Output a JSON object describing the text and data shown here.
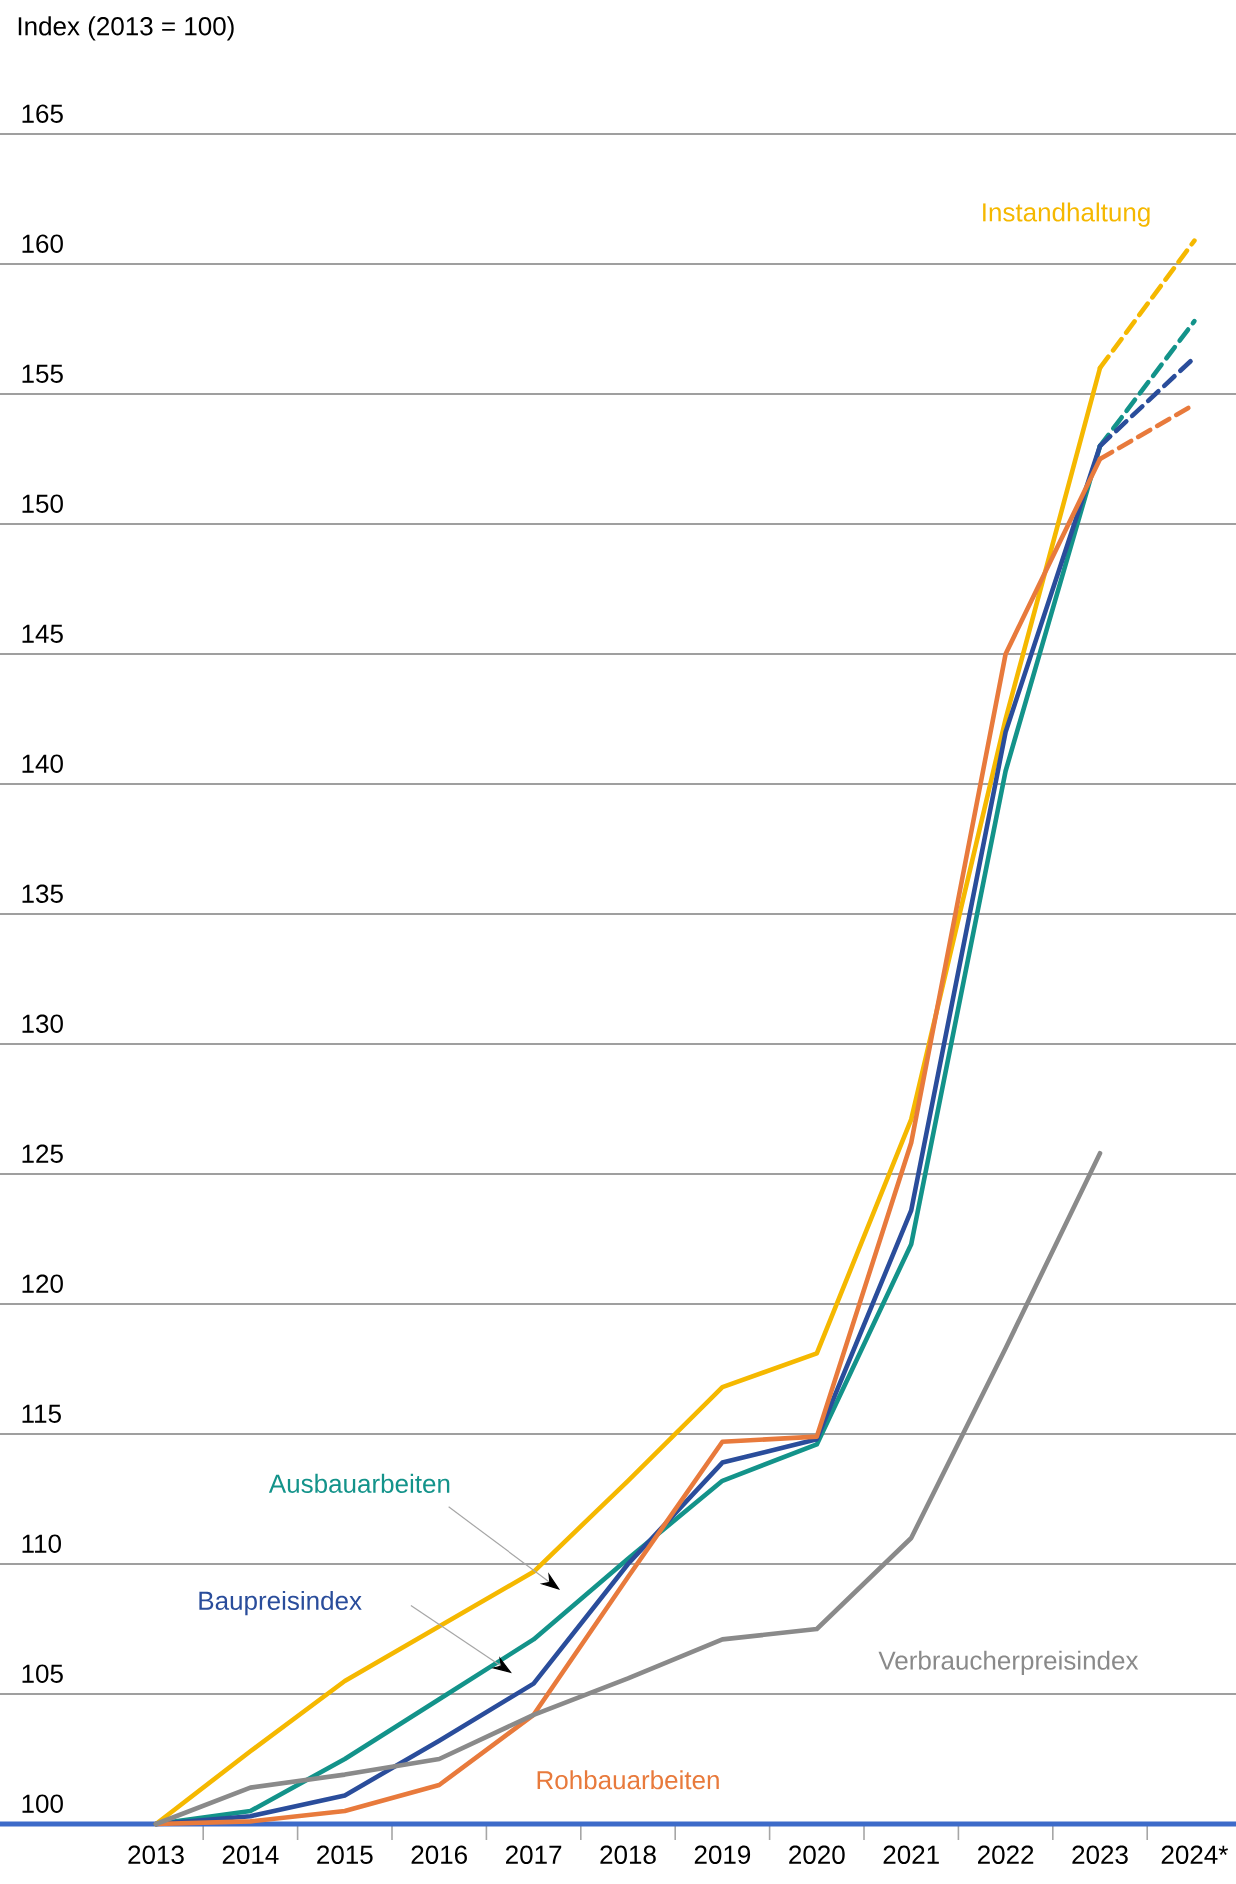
{
  "chart_data": {
    "type": "line",
    "ylabel": "Index (2013 = 100)",
    "categories": [
      "2013",
      "2014",
      "2015",
      "2016",
      "2017",
      "2018",
      "2019",
      "2020",
      "2021",
      "2022",
      "2023",
      "2024*"
    ],
    "ylim": [
      100,
      165
    ],
    "yticks": [
      100,
      105,
      110,
      115,
      120,
      125,
      130,
      135,
      140,
      145,
      150,
      155,
      160,
      165
    ],
    "grid": "y",
    "series": [
      {
        "name": "Instandhaltung",
        "color": "#f5b800",
        "values": [
          100,
          102.8,
          105.5,
          107.6,
          109.7,
          113.2,
          116.8,
          118.1,
          127.1,
          142.5,
          156,
          null
        ]
      },
      {
        "name": "Ausbauarbeiten",
        "color": "#13938a",
        "values": [
          100,
          100.5,
          102.5,
          104.8,
          107.1,
          110.2,
          113.2,
          114.6,
          122.3,
          140.5,
          153,
          null
        ]
      },
      {
        "name": "Baupreisindex",
        "color": "#2a4d9b",
        "values": [
          100,
          100.3,
          101.1,
          103.2,
          105.4,
          110,
          113.9,
          114.8,
          123.6,
          142,
          153,
          null
        ]
      },
      {
        "name": "Rohbauarbeiten",
        "color": "#e87a3c",
        "values": [
          100,
          100.1,
          100.5,
          101.5,
          104.2,
          109.5,
          114.7,
          114.9,
          126.2,
          145,
          152.5,
          null
        ]
      },
      {
        "name": "Verbraucherpreisindex",
        "color": "#8a8a8a",
        "values": [
          100,
          101.4,
          101.9,
          102.5,
          104.2,
          105.6,
          107.1,
          107.5,
          111,
          118.3,
          125.8,
          null
        ]
      },
      {
        "color": "#f5b800",
        "line_style": "dashed",
        "values": [
          null,
          null,
          null,
          null,
          null,
          null,
          null,
          null,
          null,
          null,
          156,
          160.9
        ]
      },
      {
        "color": "#13938a",
        "line_style": "dashed",
        "values": [
          null,
          null,
          null,
          null,
          null,
          null,
          null,
          null,
          null,
          null,
          153,
          157.8
        ]
      },
      {
        "color": "#2a4d9b",
        "line_style": "dashed",
        "values": [
          null,
          null,
          null,
          null,
          null,
          null,
          null,
          null,
          null,
          null,
          153,
          156.4
        ]
      },
      {
        "color": "#e87a3c",
        "line_style": "dashed",
        "values": [
          null,
          null,
          null,
          null,
          null,
          null,
          null,
          null,
          null,
          null,
          152.5,
          154.6
        ]
      }
    ]
  }
}
